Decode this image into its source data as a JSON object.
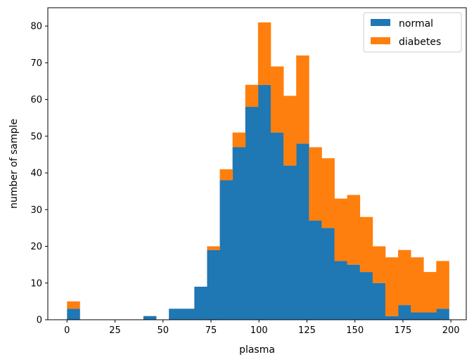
{
  "chart_data": {
    "type": "bar",
    "stacked": true,
    "histogram": true,
    "xlabel": "plasma",
    "ylabel": "number of sample",
    "xlim": [
      -10,
      208
    ],
    "ylim": [
      0,
      85
    ],
    "xticks": [
      0,
      25,
      50,
      75,
      100,
      125,
      150,
      175,
      200
    ],
    "yticks": [
      0,
      10,
      20,
      30,
      40,
      50,
      60,
      70,
      80
    ],
    "grid": false,
    "legend": {
      "position": "top-right"
    },
    "bin_edges": [
      0,
      6.63,
      13.27,
      19.9,
      26.53,
      33.17,
      39.8,
      46.43,
      53.07,
      59.7,
      66.33,
      72.97,
      79.6,
      86.23,
      92.87,
      99.5,
      106.13,
      112.77,
      119.4,
      126.03,
      132.67,
      139.3,
      145.93,
      152.57,
      159.2,
      165.83,
      172.47,
      179.1,
      185.73,
      192.37,
      199
    ],
    "series": [
      {
        "name": "normal",
        "color": "#1f77b4",
        "values": [
          3,
          0,
          0,
          0,
          0,
          0,
          1,
          0,
          3,
          3,
          9,
          19,
          38,
          47,
          58,
          64,
          51,
          42,
          48,
          27,
          25,
          16,
          15,
          13,
          10,
          1,
          4,
          2,
          2,
          3
        ]
      },
      {
        "name": "diabetes",
        "color": "#ff7f0e",
        "values": [
          2,
          0,
          0,
          0,
          0,
          0,
          0,
          0,
          0,
          0,
          0,
          1,
          3,
          4,
          6,
          17,
          18,
          19,
          24,
          20,
          19,
          17,
          19,
          15,
          10,
          16,
          15,
          15,
          11,
          13
        ]
      }
    ]
  }
}
